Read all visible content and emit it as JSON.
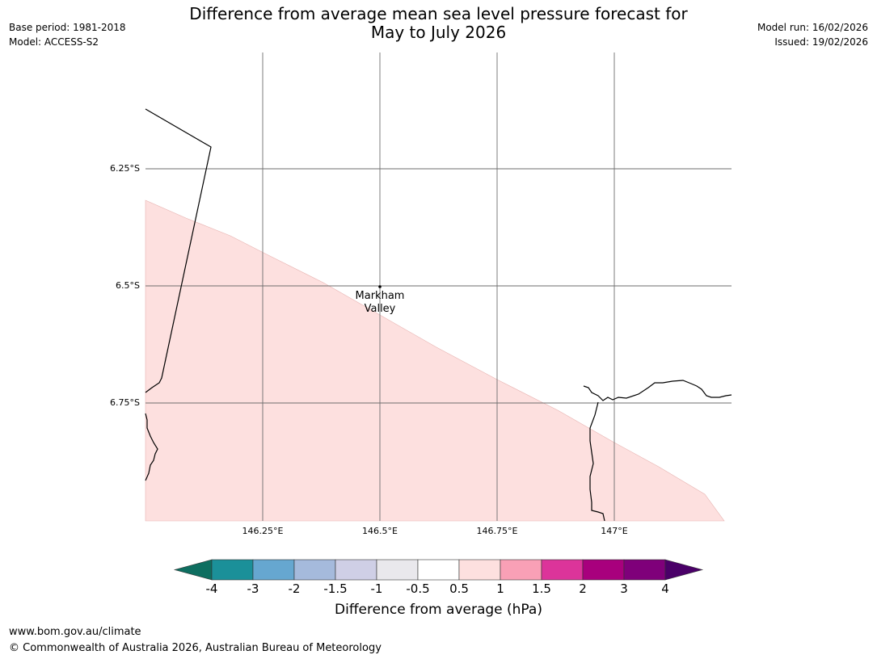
{
  "title": {
    "line1": "Difference from average mean sea level pressure forecast for",
    "line2": "May to July 2026"
  },
  "header_left": {
    "base_period": "Base period: 1981-2018",
    "model": "Model: ACCESS-S2"
  },
  "header_right": {
    "model_run": "Model run: 16/02/2026",
    "issued": "Issued: 19/02/2026"
  },
  "map": {
    "lat_ticks": [
      "6.25°S",
      "6.5°S",
      "6.75°S"
    ],
    "lon_ticks": [
      "146.25°E",
      "146.5°E",
      "146.75°E",
      "147°E"
    ],
    "place": {
      "line1": "Markham",
      "line2": "Valley"
    },
    "shaded_category": "0.5 to 1"
  },
  "colorbar": {
    "ticks": [
      "-4",
      "-3",
      "-2",
      "-1.5",
      "-1",
      "-0.5",
      "0.5",
      "1",
      "1.5",
      "2",
      "3",
      "4"
    ],
    "colors": [
      "#0e6e60",
      "#1b9099",
      "#66a7d0",
      "#a5badc",
      "#cfcfe6",
      "#e9e8ec",
      "#ffffff",
      "#fde0df",
      "#f9a0b6",
      "#dc349a",
      "#a8007d",
      "#7f007a",
      "#4a0068"
    ],
    "label": "Difference from average (hPa)"
  },
  "footer": {
    "url": "www.bom.gov.au/climate",
    "copyright": "© Commonwealth of Australia 2026, Australian Bureau of Meteorology"
  }
}
